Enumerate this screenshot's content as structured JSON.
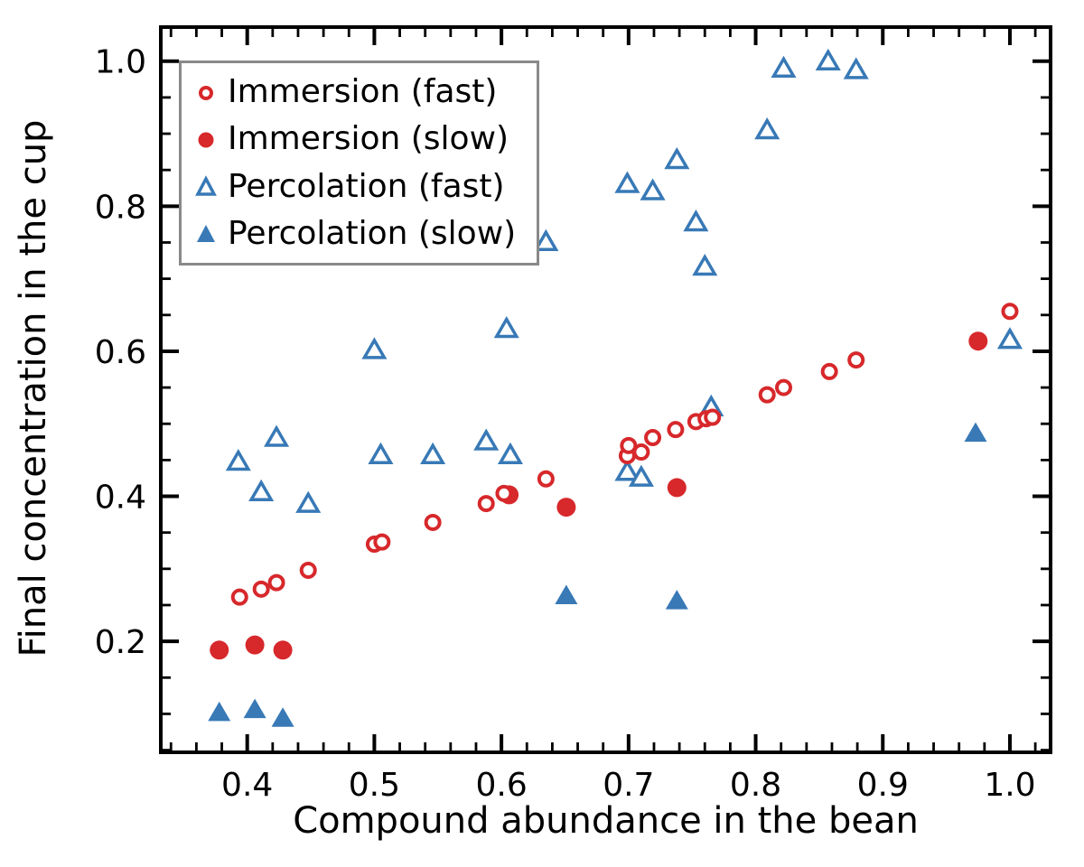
{
  "figure": {
    "background": "#ffffff",
    "frame_color": "#000000"
  },
  "chart_data": {
    "type": "scatter",
    "title": "",
    "xlabel": "Compound abundance in the bean",
    "ylabel": "Final concentration in the cup",
    "xlim": [
      0.332,
      1.032
    ],
    "ylim": [
      0.047,
      1.047
    ],
    "x_major_ticks": [
      0.4,
      0.5,
      0.6,
      0.7,
      0.8,
      0.9,
      1.0
    ],
    "x_tick_labels": [
      "0.4",
      "0.5",
      "0.6",
      "0.7",
      "0.8",
      "0.9",
      "1.0"
    ],
    "x_minor_step": 0.02,
    "y_major_ticks": [
      0.2,
      0.4,
      0.6,
      0.8,
      1.0
    ],
    "y_tick_labels": [
      "0.2",
      "0.4",
      "0.6",
      "0.8",
      "1.0"
    ],
    "y_minor_step": 0.05,
    "grid": false,
    "legend_position": "upper-left",
    "colors": {
      "red": "#d7282b",
      "blue": "#3879b6",
      "open_fill": "#ffffff"
    },
    "series": [
      {
        "name": "immersion-fast",
        "label": "Immersion (fast)",
        "marker": "circle-open",
        "color": "red",
        "points": [
          [
            0.394,
            0.261
          ],
          [
            0.411,
            0.272
          ],
          [
            0.423,
            0.281
          ],
          [
            0.448,
            0.298
          ],
          [
            0.5,
            0.334
          ],
          [
            0.506,
            0.337
          ],
          [
            0.546,
            0.364
          ],
          [
            0.588,
            0.39
          ],
          [
            0.602,
            0.404
          ],
          [
            0.635,
            0.424
          ],
          [
            0.699,
            0.456
          ],
          [
            0.7,
            0.47
          ],
          [
            0.71,
            0.461
          ],
          [
            0.719,
            0.481
          ],
          [
            0.737,
            0.492
          ],
          [
            0.753,
            0.503
          ],
          [
            0.761,
            0.507
          ],
          [
            0.766,
            0.509
          ],
          [
            0.809,
            0.54
          ],
          [
            0.822,
            0.55
          ],
          [
            0.858,
            0.572
          ],
          [
            0.879,
            0.588
          ],
          [
            1.0,
            0.655
          ]
        ]
      },
      {
        "name": "immersion-slow",
        "label": "Immersion (slow)",
        "marker": "circle-filled",
        "color": "red",
        "points": [
          [
            0.378,
            0.188
          ],
          [
            0.406,
            0.195
          ],
          [
            0.428,
            0.188
          ],
          [
            0.606,
            0.402
          ],
          [
            0.651,
            0.385
          ],
          [
            0.738,
            0.412
          ],
          [
            0.975,
            0.614
          ]
        ]
      },
      {
        "name": "percolation-fast",
        "label": "Percolation (fast)",
        "marker": "triangle-open",
        "color": "blue",
        "points": [
          [
            0.393,
            0.448
          ],
          [
            0.411,
            0.406
          ],
          [
            0.423,
            0.481
          ],
          [
            0.448,
            0.39
          ],
          [
            0.5,
            0.602
          ],
          [
            0.505,
            0.457
          ],
          [
            0.546,
            0.457
          ],
          [
            0.588,
            0.476
          ],
          [
            0.604,
            0.631
          ],
          [
            0.607,
            0.457
          ],
          [
            0.635,
            0.751
          ],
          [
            0.699,
            0.434
          ],
          [
            0.699,
            0.831
          ],
          [
            0.71,
            0.426
          ],
          [
            0.719,
            0.821
          ],
          [
            0.738,
            0.864
          ],
          [
            0.753,
            0.778
          ],
          [
            0.76,
            0.717
          ],
          [
            0.765,
            0.523
          ],
          [
            0.809,
            0.905
          ],
          [
            0.822,
            0.99
          ],
          [
            0.857,
            1.0
          ],
          [
            0.879,
            0.988
          ],
          [
            1.0,
            0.616
          ]
        ]
      },
      {
        "name": "percolation-slow",
        "label": "Percolation (slow)",
        "marker": "triangle-filled",
        "color": "blue",
        "points": [
          [
            0.378,
            0.102
          ],
          [
            0.406,
            0.106
          ],
          [
            0.428,
            0.094
          ],
          [
            0.651,
            0.263
          ],
          [
            0.738,
            0.256
          ],
          [
            0.973,
            0.487
          ]
        ]
      }
    ]
  }
}
